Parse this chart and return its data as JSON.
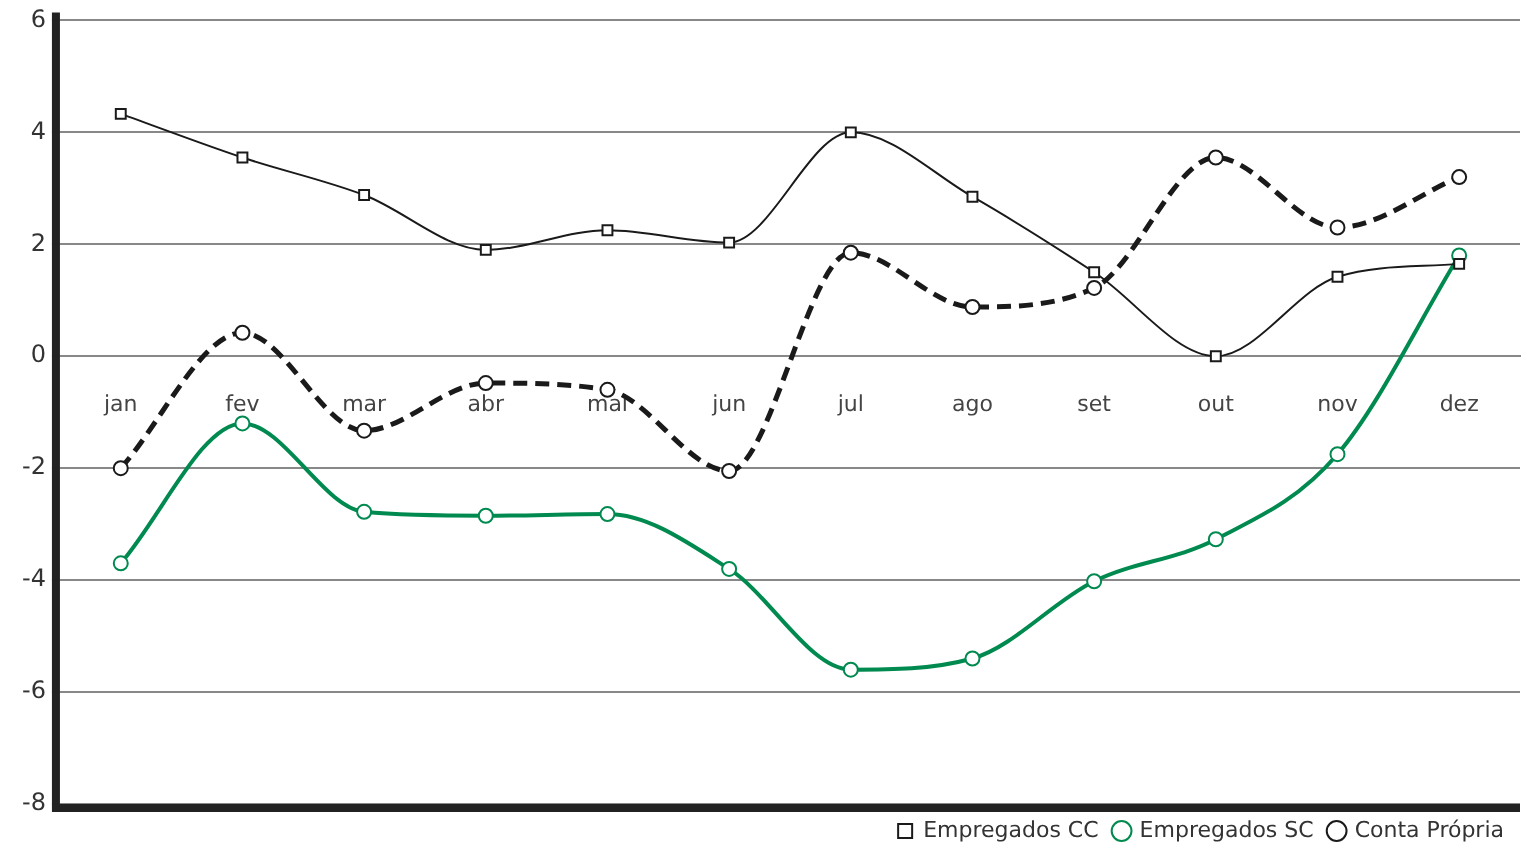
{
  "chart_data": {
    "type": "line",
    "categories": [
      "jan",
      "fev",
      "mar",
      "abr",
      "mai",
      "jun",
      "jul",
      "ago",
      "set",
      "out",
      "nov",
      "dez"
    ],
    "series": [
      {
        "name": "Empregados CC",
        "color": "#1a1a1a",
        "marker": "square",
        "line_style": "solid",
        "values": [
          4.33,
          3.55,
          2.88,
          1.9,
          2.25,
          2.03,
          4.0,
          2.85,
          1.5,
          0.0,
          1.42,
          1.65
        ]
      },
      {
        "name": "Empregados SC",
        "color": "#008a50",
        "marker": "circle",
        "line_style": "solid",
        "values": [
          -3.7,
          -1.2,
          -2.78,
          -2.85,
          -2.82,
          -3.8,
          -5.6,
          -5.4,
          -4.02,
          -3.27,
          -1.75,
          1.8
        ]
      },
      {
        "name": "Conta Própria",
        "color": "#1a1a1a",
        "marker": "circle",
        "line_style": "dashed",
        "values": [
          -2.0,
          0.42,
          -1.33,
          -0.48,
          -0.6,
          -2.05,
          1.85,
          0.88,
          1.22,
          3.55,
          2.3,
          3.2
        ]
      }
    ],
    "ylim": [
      -8,
      6
    ],
    "yticks": [
      -8,
      -6,
      -4,
      -2,
      0,
      2,
      4,
      6
    ],
    "grid": "y",
    "legend": "bottom right"
  }
}
